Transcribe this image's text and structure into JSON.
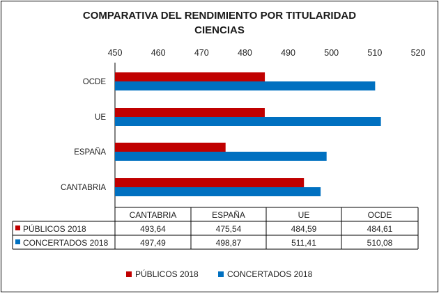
{
  "chart_data": {
    "type": "bar",
    "orientation": "horizontal",
    "title": "COMPARATIVA DEL RENDIMIENTO POR TITULARIDAD",
    "subtitle": "CIENCIAS",
    "categories": [
      "CANTABRIA",
      "ESPAÑA",
      "UE",
      "OCDE"
    ],
    "series": [
      {
        "name": "PÚBLICOS 2018",
        "color": "#c00000",
        "values": [
          493.64,
          475.54,
          484.59,
          484.61
        ],
        "labels": [
          "493,64",
          "475,54",
          "484,59",
          "484,61"
        ]
      },
      {
        "name": "CONCERTADOS 2018",
        "color": "#0070c0",
        "values": [
          497.49,
          498.87,
          511.41,
          510.08
        ],
        "labels": [
          "497,49",
          "498,87",
          "511,41",
          "510,08"
        ]
      }
    ],
    "xlim": [
      450,
      520
    ],
    "xticks": [
      450,
      460,
      470,
      480,
      490,
      500,
      510,
      520
    ],
    "axis_position": "top",
    "grid": false,
    "legend": "bottom",
    "data_table": true
  }
}
